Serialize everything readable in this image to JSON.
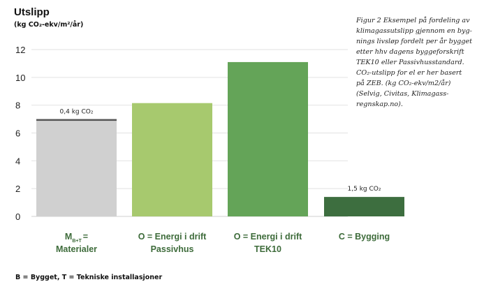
{
  "chart_data": {
    "type": "bar",
    "title": "Utslipp",
    "subtitle": "(kg CO₂-ekv/m²/år)",
    "ylim": [
      0,
      12
    ],
    "yticks": [
      0,
      2,
      4,
      6,
      8,
      10,
      12
    ],
    "grid": true,
    "categories": [
      {
        "lines": [
          "M",
          "= "
        ],
        "subscript": "B+T",
        "line2": "Materialer"
      },
      {
        "line1": "O = Energi i drift",
        "line2": "Passivhus"
      },
      {
        "line1": "O = Energi i drift",
        "line2": "TEK10"
      },
      {
        "line1": "C = Bygging",
        "line2": ""
      }
    ],
    "values": [
      6.95,
      8.15,
      11.1,
      1.4
    ],
    "colors": [
      "#d0d0d0",
      "#a7c96e",
      "#64a458",
      "#3d6e3f"
    ],
    "annotations": [
      {
        "bar": 0,
        "text": "0,4 kg CO₂",
        "value": 0.4
      },
      {
        "bar": 3,
        "text": "1,5 kg CO₂",
        "value": 1.5
      }
    ],
    "top_segment_color": "#555555"
  },
  "caption_lines": [
    "Figur 2 Eksempel på fordeling av",
    "klimagassutslipp gjennom en byg-",
    "nings livsløp fordelt per år bygget",
    "etter hhv dagens byggeforskrift",
    "TEK10 eller Passivhusstandard.",
    "CO₂-utslipp for el er her basert",
    "på ZEB. (kg CO₂-ekv/m2/år)",
    "(Selvig, Civitas, Klimagass-",
    "regnskap.no)."
  ],
  "footnote": "B = Bygget, T = Tekniske installasjoner"
}
